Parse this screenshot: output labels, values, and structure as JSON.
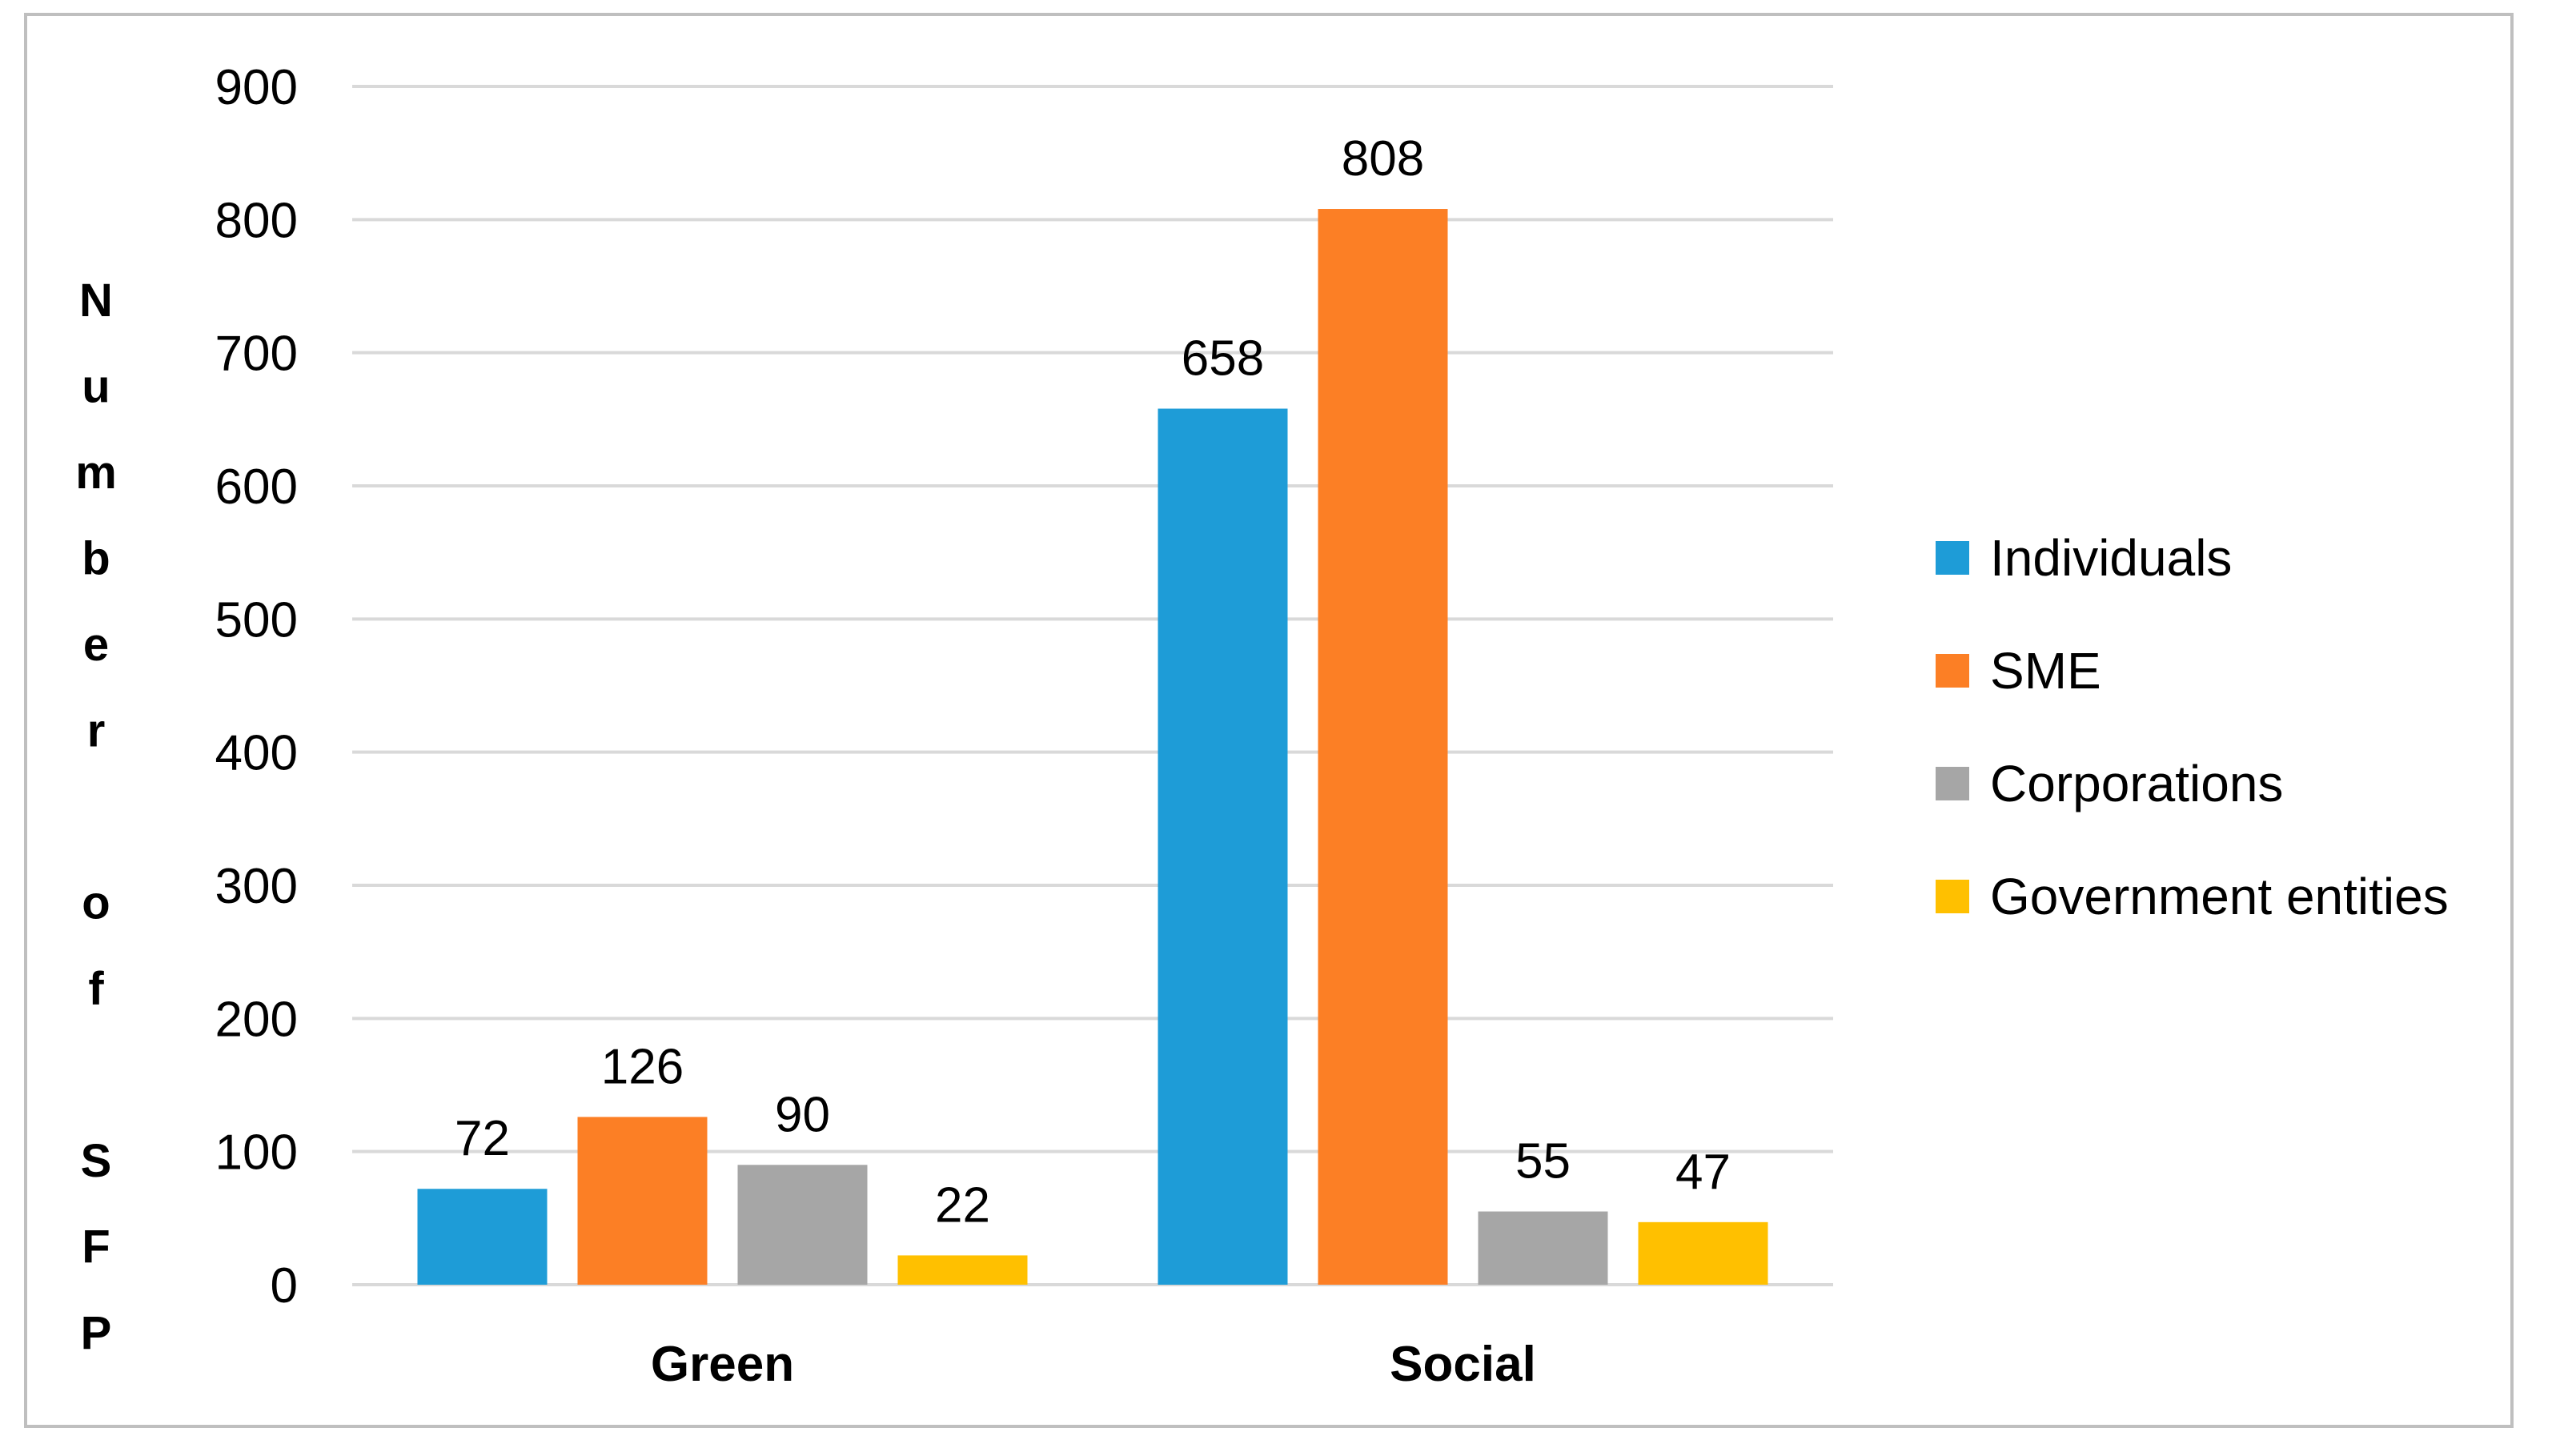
{
  "chart_data": {
    "type": "bar",
    "title": "",
    "xlabel": "",
    "ylabel": "Number of SFP",
    "ylabel_letters": [
      "N",
      "u",
      "m",
      "b",
      "e",
      "r",
      "",
      "o",
      "f",
      "",
      "S",
      "F",
      "P"
    ],
    "categories": [
      "Green",
      "Social"
    ],
    "series": [
      {
        "name": "Individuals",
        "color": "#1e9cd7",
        "values": [
          72,
          658
        ]
      },
      {
        "name": "SME",
        "color": "#fc7f25",
        "values": [
          126,
          808
        ]
      },
      {
        "name": "Corporations",
        "color": "#a6a6a6",
        "values": [
          90,
          55
        ]
      },
      {
        "name": "Government entities",
        "color": "#ffc000",
        "values": [
          22,
          47
        ]
      }
    ],
    "ylim": [
      0,
      900
    ],
    "yticks": [
      0,
      100,
      200,
      300,
      400,
      500,
      600,
      700,
      800,
      900
    ],
    "grid": true,
    "legend": "right"
  }
}
